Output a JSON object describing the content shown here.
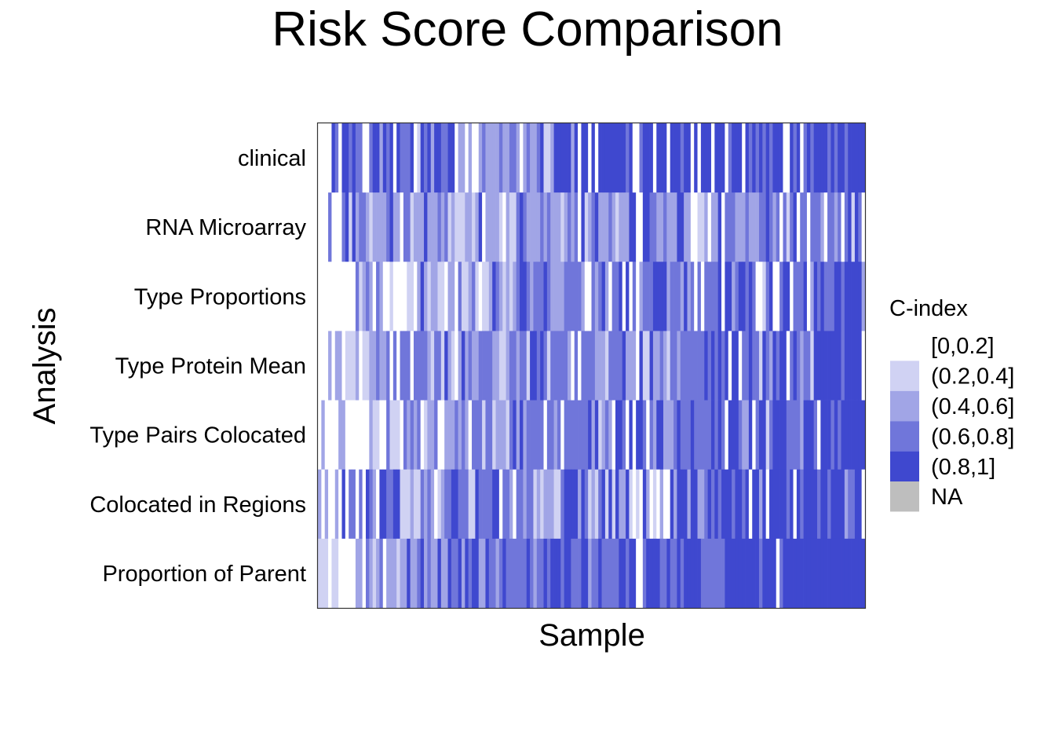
{
  "chart_data": {
    "type": "heatmap",
    "title": "Risk Score Comparison",
    "xlabel": "Sample",
    "ylabel": "Analysis",
    "rows": [
      "clinical",
      "RNA Microarray",
      "Type Proportions",
      "Type Protein Mean",
      "Type Pairs Colocated",
      "Colocated in Regions",
      "Proportion of Parent"
    ],
    "n_samples": 160,
    "legend": {
      "title": "C-index",
      "placement": "right",
      "bins": [
        {
          "label": "[0,0.2]",
          "color": "#ffffff"
        },
        {
          "label": "(0.2,0.4]",
          "color": "#d0d2f3"
        },
        {
          "label": "(0.4,0.6]",
          "color": "#a1a5e6"
        },
        {
          "label": "(0.6,0.8]",
          "color": "#7076da"
        },
        {
          "label": "(0.8,1]",
          "color": "#3f48cf"
        },
        {
          "label": "NA",
          "color": "#bebebe"
        }
      ]
    },
    "values": [
      "0000430443433003442434043334014342443344022020023222232233202322341124444424044040444444443400344404440444344040444044403444043434343444004340343444434344344444",
      "0003000341423321222234220331222422232312111221240222210211343222232322212323041234222321222440044332232224422001120224033322232223343230313403303332033230341430",
      "0000000000031232032001000011024212211022031123101124321212344323334322223333320032342033404030233344442333242303033334044234434300134003440333402434333443444442",
      "0002022011120112232230303330333321331421024232233332211233233144343133333203033332221333342220411422321332333333343434340440334331432434403432331444444443444440",
      "0200002200000002110031110323230122300222323203331331222134242333330332303333333424123204430404430324422234333433333434304443224034413444433332444304443434444444",
      "2020020403303043204433441112113232012334433311433334403320332331212221134444243121341414224101042010200424442442234343444344340442404444434043444434434444233440",
      "1110110000022032123022212242234232242243342434422433234333333432334344434433344233433333443440034444334334344444333333344444444443444403444444444444444444444444"
    ],
    "value_encoding": "one digit per sample; digit = index into legend.bins"
  }
}
